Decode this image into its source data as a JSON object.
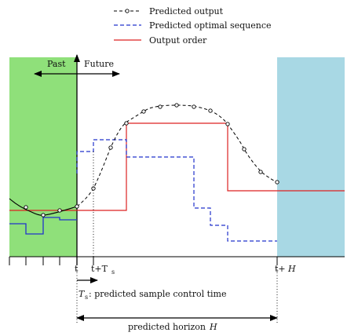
{
  "legend": {
    "items": [
      {
        "label": "Predicted output",
        "color": "#000000",
        "style": "dashed-circles"
      },
      {
        "label": "Predicted optimal sequence",
        "color": "#2233cc",
        "style": "dashed"
      },
      {
        "label": "Output order",
        "color": "#dd2222",
        "style": "solid"
      }
    ]
  },
  "regions": {
    "past_label": "Past",
    "future_label": "Future",
    "past_color": "#8fe07a",
    "horizon_color": "#a8d8e4"
  },
  "axis": {
    "tick_t": "t",
    "tick_t_plus_ts": "t+T",
    "tick_t_plus_ts_sub": "s",
    "tick_t_plus_h": "t+",
    "tick_t_plus_h_var": "H"
  },
  "annotations": {
    "ts_symbol": "T",
    "ts_sub": "s",
    "ts_desc": ": predicted sample control time",
    "horizon_desc": "predicted horizon ",
    "horizon_var": "H"
  }
}
